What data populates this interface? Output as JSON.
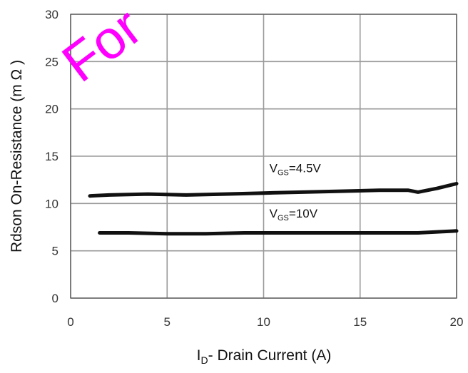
{
  "chart_data": {
    "type": "line",
    "xlabel": {
      "main": "I",
      "sub": "D",
      "rest": "- Drain Current (A)"
    },
    "ylabel": "Rdson On-Resistance (m Ω )",
    "xlim": [
      0,
      20
    ],
    "ylim": [
      0,
      30
    ],
    "x_ticks": [
      "0",
      "5",
      "10",
      "15",
      "20"
    ],
    "y_ticks": [
      "0",
      "5",
      "10",
      "15",
      "20",
      "25",
      "30"
    ],
    "grid": true,
    "series": [
      {
        "name": {
          "main": "V",
          "sub": "GS",
          "rest": "=4.5V"
        },
        "x": [
          1,
          2,
          4,
          6,
          8,
          10,
          12,
          14,
          16,
          17.5,
          18,
          19,
          20
        ],
        "y": [
          10.8,
          10.9,
          11.0,
          10.9,
          11.0,
          11.1,
          11.2,
          11.3,
          11.4,
          11.4,
          11.2,
          11.6,
          12.1
        ]
      },
      {
        "name": {
          "main": "V",
          "sub": "GS",
          "rest": "=10V"
        },
        "x": [
          1.5,
          3,
          5,
          7,
          9,
          11,
          13,
          15,
          17,
          18,
          19,
          20
        ],
        "y": [
          6.9,
          6.9,
          6.8,
          6.8,
          6.9,
          6.9,
          6.9,
          6.9,
          6.9,
          6.9,
          7.0,
          7.1
        ]
      }
    ],
    "watermark": "For",
    "colors": {
      "line": "#111111",
      "grid": "#9a9a9a",
      "watermark": "#ff00ff"
    }
  }
}
